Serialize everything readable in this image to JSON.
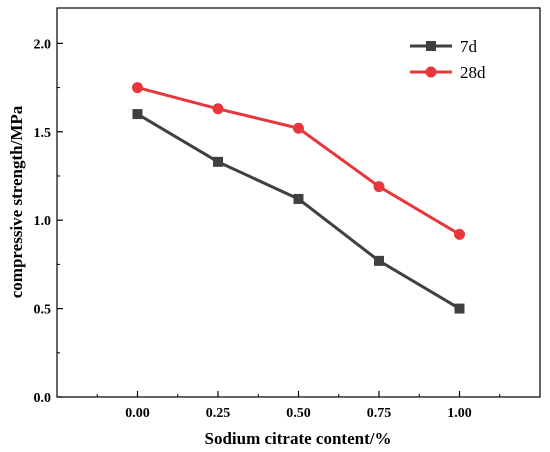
{
  "chart_data": {
    "type": "line",
    "xlabel": "Sodium citrate content/%",
    "ylabel": "compressive strength/MPa",
    "x": [
      "0.00",
      "0.25",
      "0.50",
      "0.75",
      "1.00"
    ],
    "x_values": [
      0.0,
      0.25,
      0.5,
      0.75,
      1.0
    ],
    "xlim": [
      -0.25,
      1.25
    ],
    "ylim": [
      0.0,
      2.2
    ],
    "y_ticks": [
      "0.0",
      "0.5",
      "1.0",
      "1.5",
      "2.0"
    ],
    "grid": false,
    "legend_position": "top-right",
    "series": [
      {
        "name": "7d",
        "marker": "square",
        "color": "#404040",
        "values": [
          1.6,
          1.33,
          1.12,
          0.77,
          0.5
        ]
      },
      {
        "name": "28d",
        "marker": "circle",
        "color": "#e8373c",
        "values": [
          1.75,
          1.63,
          1.52,
          1.19,
          0.92
        ]
      }
    ]
  }
}
